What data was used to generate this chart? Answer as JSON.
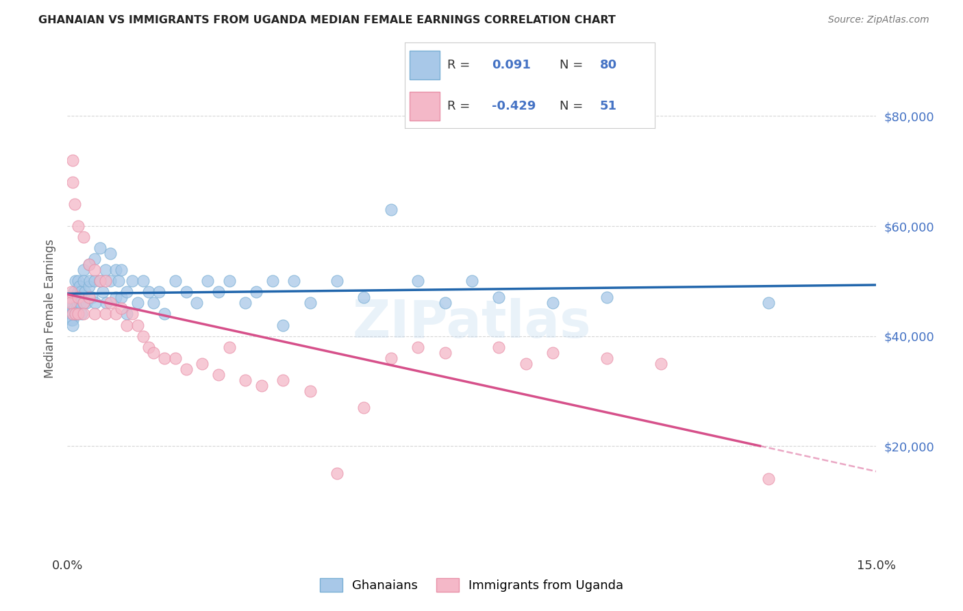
{
  "title": "GHANAIAN VS IMMIGRANTS FROM UGANDA MEDIAN FEMALE EARNINGS CORRELATION CHART",
  "source": "Source: ZipAtlas.com",
  "ylabel": "Median Female Earnings",
  "xlim": [
    0.0,
    0.15
  ],
  "ylim": [
    0,
    90000
  ],
  "yticks": [
    20000,
    40000,
    60000,
    80000
  ],
  "ytick_labels": [
    "$20,000",
    "$40,000",
    "$60,000",
    "$80,000"
  ],
  "blue_color": "#a8c8e8",
  "blue_edge_color": "#7aafd4",
  "pink_color": "#f4b8c8",
  "pink_edge_color": "#e890a8",
  "blue_line_color": "#2166ac",
  "pink_line_color": "#d6508a",
  "watermark": "ZIPatlas",
  "background_color": "#ffffff",
  "legend_box_color": "#f0f4ff",
  "legend_border_color": "#cccccc",
  "title_color": "#222222",
  "source_color": "#777777",
  "label_color": "#4472c4",
  "R1": 0.091,
  "N1": 80,
  "R2": -0.429,
  "N2": 51,
  "ghanaians_x": [
    0.0005,
    0.0006,
    0.0007,
    0.0008,
    0.0009,
    0.001,
    0.001,
    0.001,
    0.001,
    0.001,
    0.0012,
    0.0013,
    0.0015,
    0.0015,
    0.0016,
    0.0017,
    0.0018,
    0.002,
    0.002,
    0.002,
    0.0022,
    0.0023,
    0.0024,
    0.0025,
    0.0026,
    0.003,
    0.003,
    0.003,
    0.0032,
    0.0035,
    0.004,
    0.004,
    0.0042,
    0.0045,
    0.005,
    0.005,
    0.0052,
    0.006,
    0.006,
    0.0065,
    0.007,
    0.0072,
    0.008,
    0.008,
    0.009,
    0.009,
    0.0095,
    0.01,
    0.01,
    0.011,
    0.011,
    0.012,
    0.013,
    0.014,
    0.015,
    0.016,
    0.017,
    0.018,
    0.02,
    0.022,
    0.024,
    0.026,
    0.028,
    0.03,
    0.033,
    0.035,
    0.038,
    0.04,
    0.042,
    0.045,
    0.05,
    0.055,
    0.06,
    0.065,
    0.07,
    0.075,
    0.08,
    0.09,
    0.1,
    0.13
  ],
  "ghanaians_y": [
    45000,
    44000,
    43000,
    46000,
    45000,
    47000,
    46000,
    44000,
    43000,
    42000,
    48000,
    45000,
    50000,
    47000,
    44000,
    45000,
    46000,
    50000,
    48000,
    44000,
    49000,
    47000,
    46000,
    48000,
    44000,
    52000,
    50000,
    46000,
    48000,
    46000,
    53000,
    49000,
    50000,
    47000,
    54000,
    50000,
    46000,
    56000,
    50000,
    48000,
    52000,
    46000,
    55000,
    50000,
    52000,
    47000,
    50000,
    52000,
    47000,
    48000,
    44000,
    50000,
    46000,
    50000,
    48000,
    46000,
    48000,
    44000,
    50000,
    48000,
    46000,
    50000,
    48000,
    50000,
    46000,
    48000,
    50000,
    42000,
    50000,
    46000,
    50000,
    47000,
    63000,
    50000,
    46000,
    50000,
    47000,
    46000,
    47000,
    46000
  ],
  "uganda_x": [
    0.0005,
    0.0006,
    0.0007,
    0.001,
    0.001,
    0.001,
    0.0013,
    0.0015,
    0.002,
    0.002,
    0.002,
    0.003,
    0.003,
    0.003,
    0.004,
    0.004,
    0.005,
    0.005,
    0.006,
    0.007,
    0.007,
    0.008,
    0.009,
    0.01,
    0.011,
    0.012,
    0.013,
    0.014,
    0.015,
    0.016,
    0.018,
    0.02,
    0.022,
    0.025,
    0.028,
    0.03,
    0.033,
    0.036,
    0.04,
    0.045,
    0.05,
    0.055,
    0.06,
    0.065,
    0.07,
    0.08,
    0.085,
    0.09,
    0.1,
    0.11,
    0.13
  ],
  "uganda_y": [
    47000,
    46000,
    48000,
    72000,
    68000,
    44000,
    64000,
    44000,
    60000,
    47000,
    44000,
    58000,
    46000,
    44000,
    53000,
    47000,
    52000,
    44000,
    50000,
    50000,
    44000,
    46000,
    44000,
    45000,
    42000,
    44000,
    42000,
    40000,
    38000,
    37000,
    36000,
    36000,
    34000,
    35000,
    33000,
    38000,
    32000,
    31000,
    32000,
    30000,
    15000,
    27000,
    36000,
    38000,
    37000,
    38000,
    35000,
    37000,
    36000,
    35000,
    14000
  ]
}
